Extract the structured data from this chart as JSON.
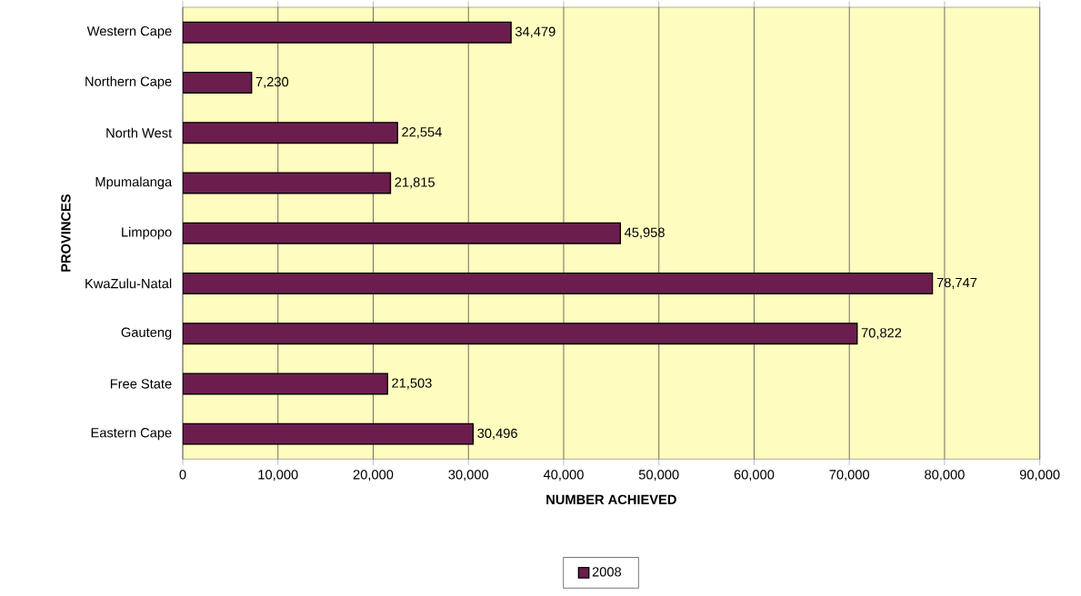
{
  "chart_data": {
    "type": "bar",
    "orientation": "horizontal",
    "xlabel": "NUMBER ACHIEVED",
    "ylabel": "PROVINCES",
    "categories": [
      "Western Cape",
      "Northern Cape",
      "North West",
      "Mpumalanga",
      "Limpopo",
      "KwaZulu-Natal",
      "Gauteng",
      "Free State",
      "Eastern Cape"
    ],
    "series": [
      {
        "name": "2008",
        "color": "#6b1e4e",
        "values": [
          34479,
          7230,
          22554,
          21815,
          45958,
          78747,
          70822,
          21503,
          30496
        ],
        "value_labels": [
          "34,479",
          "7,230",
          "22,554",
          "21,815",
          "45,958",
          "78,747",
          "70,822",
          "21,503",
          "30,496"
        ]
      }
    ],
    "xlim": [
      0,
      90000
    ],
    "xticks": [
      0,
      {
        "value": 10000,
        "label": "10,000"
      },
      {
        "value": 20000,
        "label": "20,000"
      },
      {
        "value": 30000,
        "label": "30,000"
      },
      {
        "value": 40000,
        "label": "40,000"
      },
      {
        "value": 50000,
        "label": "50,000"
      },
      {
        "value": 60000,
        "label": "60,000"
      },
      {
        "value": 70000,
        "label": "70,000"
      },
      {
        "value": 80000,
        "label": "80,000"
      },
      {
        "value": 90000,
        "label": "90,000"
      }
    ],
    "grid": "x",
    "legend": "bottom"
  }
}
